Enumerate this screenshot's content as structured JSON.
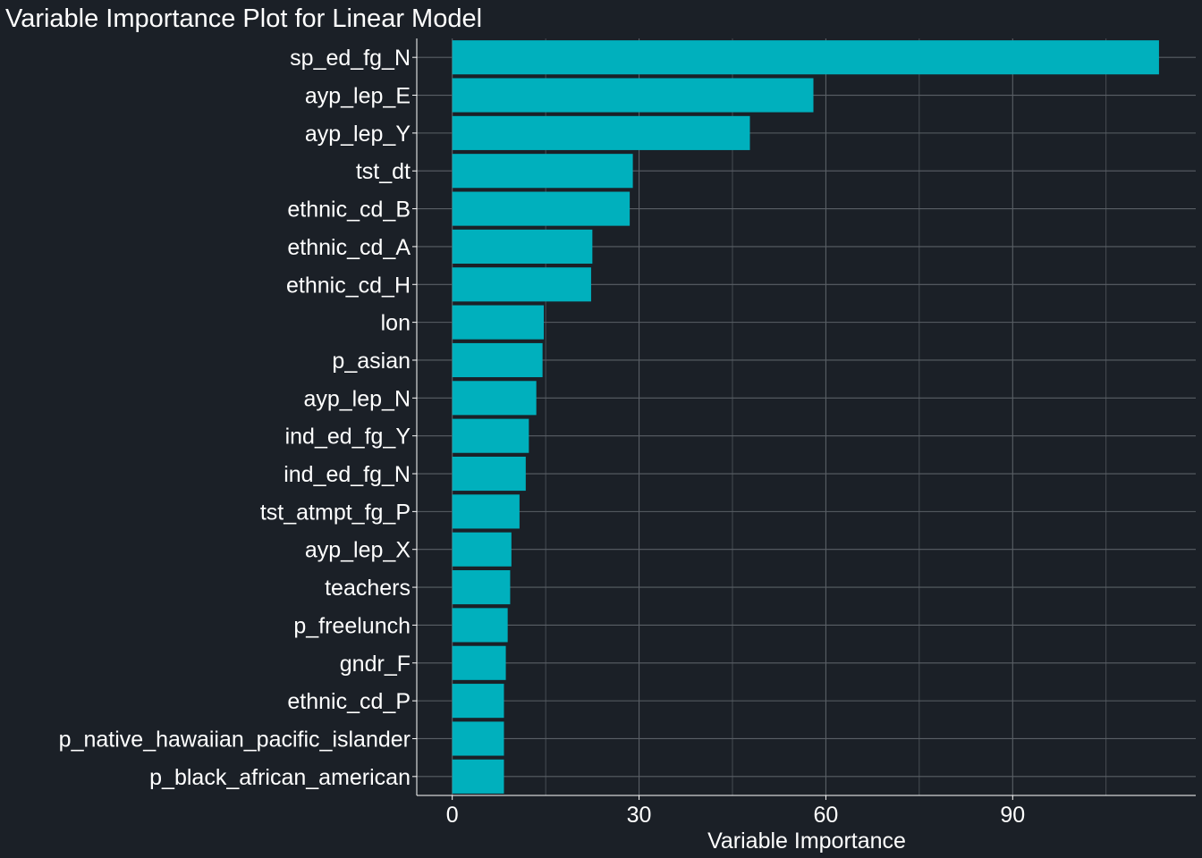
{
  "chart_data": {
    "type": "bar",
    "orientation": "horizontal",
    "title": "Variable Importance Plot for Linear Model",
    "xlabel": "Variable Importance",
    "ylabel": "",
    "xlim": [
      -5.7,
      119.4
    ],
    "xticks": [
      0,
      30,
      60,
      90
    ],
    "grid": true,
    "legend": "none",
    "bar_color": "#00b0bd",
    "background_color": "#1b2027",
    "grid_color": "#5a5f66",
    "categories": [
      "sp_ed_fg_N",
      "ayp_lep_E",
      "ayp_lep_Y",
      "tst_dt",
      "ethnic_cd_B",
      "ethnic_cd_A",
      "ethnic_cd_H",
      "lon",
      "p_asian",
      "ayp_lep_N",
      "ind_ed_fg_Y",
      "ind_ed_fg_N",
      "tst_atmpt_fg_P",
      "ayp_lep_X",
      "teachers",
      "p_freelunch",
      "gndr_F",
      "ethnic_cd_P",
      "p_native_hawaiian_pacific_islander",
      "p_black_african_american"
    ],
    "values": [
      113.5,
      58.0,
      47.8,
      29.0,
      28.5,
      22.5,
      22.3,
      14.7,
      14.5,
      13.5,
      12.3,
      11.8,
      10.8,
      9.5,
      9.3,
      8.9,
      8.6,
      8.3,
      8.3,
      8.3
    ]
  }
}
